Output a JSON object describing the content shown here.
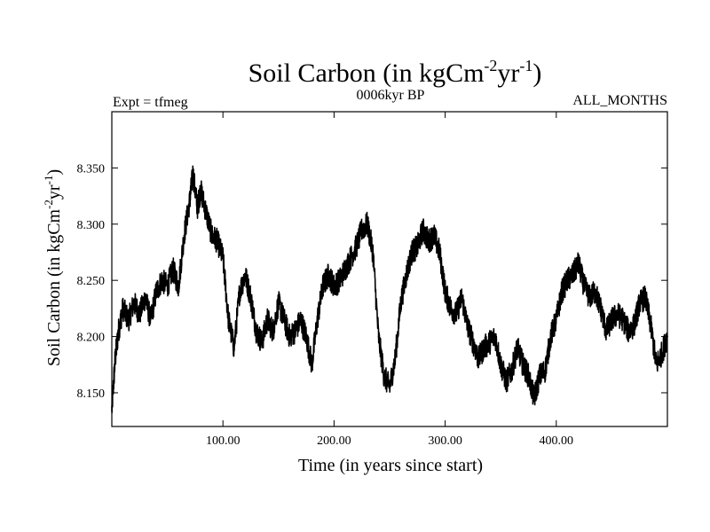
{
  "chart_data": {
    "type": "line",
    "title": {
      "main": "Soil Carbon (in kgCm",
      "sup1": "-2",
      "mid": "yr",
      "sup2": "-1",
      "end": ")"
    },
    "subtitles": {
      "left": "Expt = tfmeg",
      "center": "0006kyr BP",
      "right": "ALL_MONTHS"
    },
    "xlabel": "Time (in years since start)",
    "ylabel": {
      "main": "Soil Carbon (in kgCm",
      "sup1": "-2",
      "mid": "yr",
      "sup2": "-1",
      "end": ")"
    },
    "xlim": [
      0,
      500
    ],
    "ylim": [
      8.12,
      8.4
    ],
    "xticks": [
      {
        "value": 100,
        "label": "100.00"
      },
      {
        "value": 200,
        "label": "200.00"
      },
      {
        "value": 300,
        "label": "300.00"
      },
      {
        "value": 400,
        "label": "400.00"
      }
    ],
    "yticks": [
      {
        "value": 8.15,
        "label": "8.150"
      },
      {
        "value": 8.2,
        "label": "8.200"
      },
      {
        "value": 8.25,
        "label": "8.250"
      },
      {
        "value": 8.3,
        "label": "8.300"
      },
      {
        "value": 8.35,
        "label": "8.350"
      }
    ],
    "series": [
      {
        "color": "#000000",
        "x": [
          0,
          3,
          6,
          10,
          15,
          20,
          25,
          30,
          35,
          40,
          45,
          50,
          55,
          60,
          65,
          70,
          73,
          77,
          80,
          85,
          90,
          95,
          100,
          105,
          110,
          115,
          120,
          125,
          130,
          135,
          140,
          145,
          150,
          155,
          160,
          165,
          170,
          175,
          180,
          185,
          190,
          195,
          200,
          205,
          210,
          215,
          220,
          225,
          230,
          235,
          240,
          245,
          250,
          255,
          260,
          265,
          270,
          275,
          280,
          285,
          290,
          295,
          300,
          305,
          310,
          315,
          320,
          325,
          330,
          335,
          340,
          345,
          350,
          355,
          360,
          365,
          370,
          375,
          380,
          385,
          390,
          395,
          400,
          405,
          410,
          415,
          420,
          425,
          430,
          435,
          440,
          445,
          450,
          455,
          460,
          465,
          470,
          475,
          480,
          485,
          490,
          495,
          500
        ],
        "values": [
          8.135,
          8.18,
          8.205,
          8.225,
          8.215,
          8.23,
          8.22,
          8.235,
          8.215,
          8.24,
          8.25,
          8.245,
          8.26,
          8.245,
          8.29,
          8.32,
          8.345,
          8.315,
          8.33,
          8.31,
          8.29,
          8.285,
          8.27,
          8.215,
          8.19,
          8.24,
          8.255,
          8.235,
          8.205,
          8.195,
          8.215,
          8.205,
          8.23,
          8.215,
          8.2,
          8.205,
          8.215,
          8.2,
          8.175,
          8.215,
          8.245,
          8.255,
          8.245,
          8.25,
          8.26,
          8.27,
          8.28,
          8.295,
          8.3,
          8.275,
          8.2,
          8.165,
          8.155,
          8.18,
          8.23,
          8.255,
          8.275,
          8.28,
          8.295,
          8.285,
          8.29,
          8.275,
          8.24,
          8.225,
          8.22,
          8.235,
          8.21,
          8.195,
          8.18,
          8.19,
          8.195,
          8.2,
          8.175,
          8.16,
          8.17,
          8.19,
          8.175,
          8.165,
          8.145,
          8.165,
          8.17,
          8.2,
          8.215,
          8.24,
          8.25,
          8.255,
          8.265,
          8.245,
          8.235,
          8.24,
          8.225,
          8.205,
          8.215,
          8.22,
          8.215,
          8.205,
          8.21,
          8.23,
          8.235,
          8.21,
          8.175,
          8.185,
          8.2
        ]
      }
    ]
  }
}
